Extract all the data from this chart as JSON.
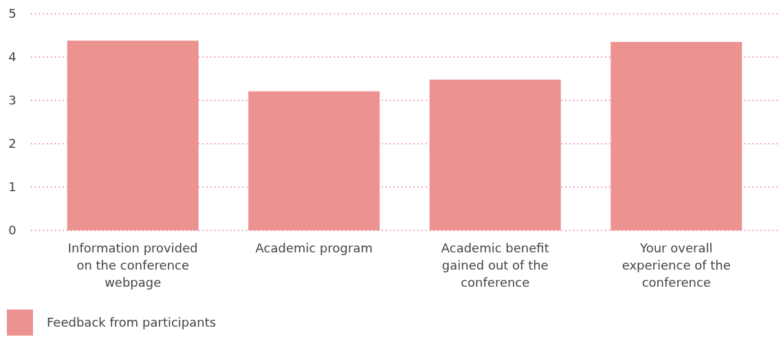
{
  "chart_data": {
    "type": "bar",
    "categories": [
      "Information provided on the conference webpage",
      "Academic program",
      "Academic benefit gained out of the conference",
      "Your overall experience of the conference"
    ],
    "series": [
      {
        "name": "Feedback from participants",
        "color": "#ec9391",
        "values": [
          4.38,
          3.21,
          3.48,
          4.35
        ]
      }
    ],
    "ylim": [
      0,
      5
    ],
    "yticks": [
      0,
      1,
      2,
      3,
      4,
      5
    ],
    "grid": "y",
    "legend": "bottom left"
  }
}
